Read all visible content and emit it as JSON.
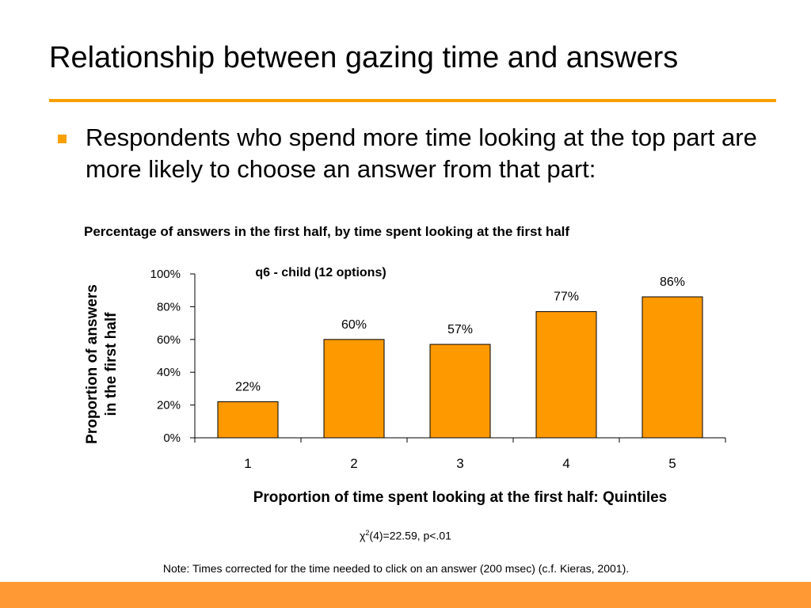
{
  "slide": {
    "title": "Relationship between gazing time and answers",
    "bullet": "Respondents who spend more time looking at the top part are more likely to choose an answer from that part:",
    "stat_symbol": "χ",
    "stat_exponent": "2",
    "stat_rest": "(4)=22.59, p<.01",
    "note": "Note: Times corrected for the time needed to click on an answer (200 msec) (c.f. Kieras, 2001).",
    "accent_color": "#f7a000",
    "footer_color": "#ff9933"
  },
  "chart_data": {
    "type": "bar",
    "title": "Percentage of answers in the first half, by time spent looking at the first half",
    "subtitle": "q6 - child (12 options)",
    "xlabel": "Proportion of time spent looking at the first half: Quintiles",
    "ylabel_lines": [
      "Proportion of answers",
      "in the first half"
    ],
    "categories": [
      "1",
      "2",
      "3",
      "4",
      "5"
    ],
    "values": [
      22,
      60,
      57,
      77,
      86
    ],
    "value_labels": [
      "22%",
      "60%",
      "57%",
      "77%",
      "86%"
    ],
    "ylim": [
      0,
      100
    ],
    "yticks": [
      0,
      20,
      40,
      60,
      80,
      100
    ],
    "ytick_labels": [
      "0%",
      "20%",
      "40%",
      "60%",
      "80%",
      "100%"
    ],
    "bar_color": "#ff9900",
    "grid": false,
    "legend": "none"
  }
}
